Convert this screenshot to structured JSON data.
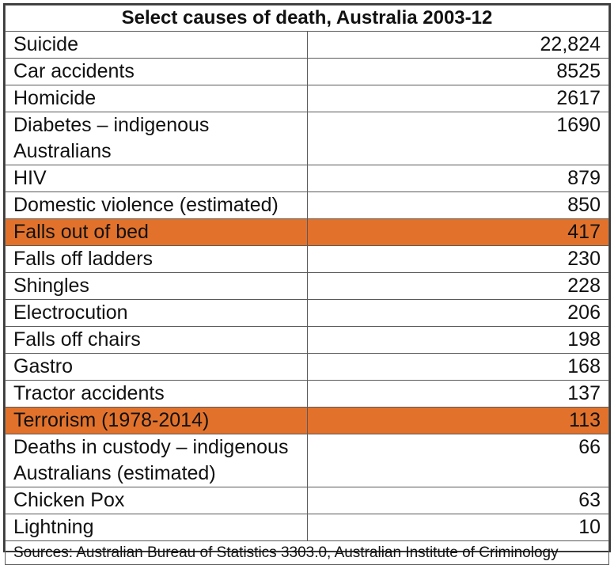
{
  "chart_data": {
    "type": "table",
    "title": "Select causes of death, Australia 2003-12",
    "rows": [
      {
        "cause": "Suicide",
        "value": "22,824",
        "highlight": false
      },
      {
        "cause": "Car accidents",
        "value": "8525",
        "highlight": false
      },
      {
        "cause": "Homicide",
        "value": "2617",
        "highlight": false
      },
      {
        "cause": "Diabetes – indigenous Australians",
        "value": "1690",
        "highlight": false
      },
      {
        "cause": "HIV",
        "value": "879",
        "highlight": false
      },
      {
        "cause": "Domestic violence (estimated)",
        "value": "850",
        "highlight": false
      },
      {
        "cause": "Falls out of bed",
        "value": "417",
        "highlight": true
      },
      {
        "cause": "Falls off ladders",
        "value": "230",
        "highlight": false
      },
      {
        "cause": "Shingles",
        "value": "228",
        "highlight": false
      },
      {
        "cause": "Electrocution",
        "value": "206",
        "highlight": false
      },
      {
        "cause": "Falls off chairs",
        "value": "198",
        "highlight": false
      },
      {
        "cause": "Gastro",
        "value": "168",
        "highlight": false
      },
      {
        "cause": "Tractor accidents",
        "value": "137",
        "highlight": false
      },
      {
        "cause": "Terrorism (1978-2014)",
        "value": "113",
        "highlight": true
      },
      {
        "cause": "Deaths in custody – indigenous Australians (estimated)",
        "value": "66",
        "highlight": false
      },
      {
        "cause": "Chicken Pox",
        "value": "63",
        "highlight": false
      },
      {
        "cause": "Lightning",
        "value": "10",
        "highlight": false
      }
    ],
    "source": "Sources: Australian Bureau of Statistics 3303.0, Australian Institute of Criminology",
    "highlight_color": "#e2722b"
  }
}
